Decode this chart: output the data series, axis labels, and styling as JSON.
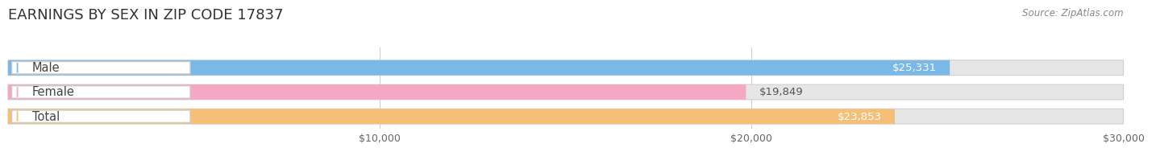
{
  "title": "EARNINGS BY SEX IN ZIP CODE 17837",
  "source": "Source: ZipAtlas.com",
  "categories": [
    "Male",
    "Female",
    "Total"
  ],
  "values": [
    25331,
    19849,
    23853
  ],
  "bar_colors": [
    "#7ab8e8",
    "#f4a8c4",
    "#f5bf78"
  ],
  "label_colors": [
    "#ffffff",
    "#555555",
    "#ffffff"
  ],
  "track_color": "#e6e6e6",
  "track_border_color": "#d0d0d0",
  "xlim_min": 0,
  "xlim_max": 30000,
  "xticks": [
    10000,
    20000,
    30000
  ],
  "xtick_labels": [
    "$10,000",
    "$20,000",
    "$30,000"
  ],
  "title_fontsize": 13,
  "label_fontsize": 10.5,
  "value_fontsize": 9.5,
  "source_fontsize": 8.5,
  "background_color": "#ffffff",
  "pill_text_color": "#444444",
  "grid_color": "#cccccc"
}
